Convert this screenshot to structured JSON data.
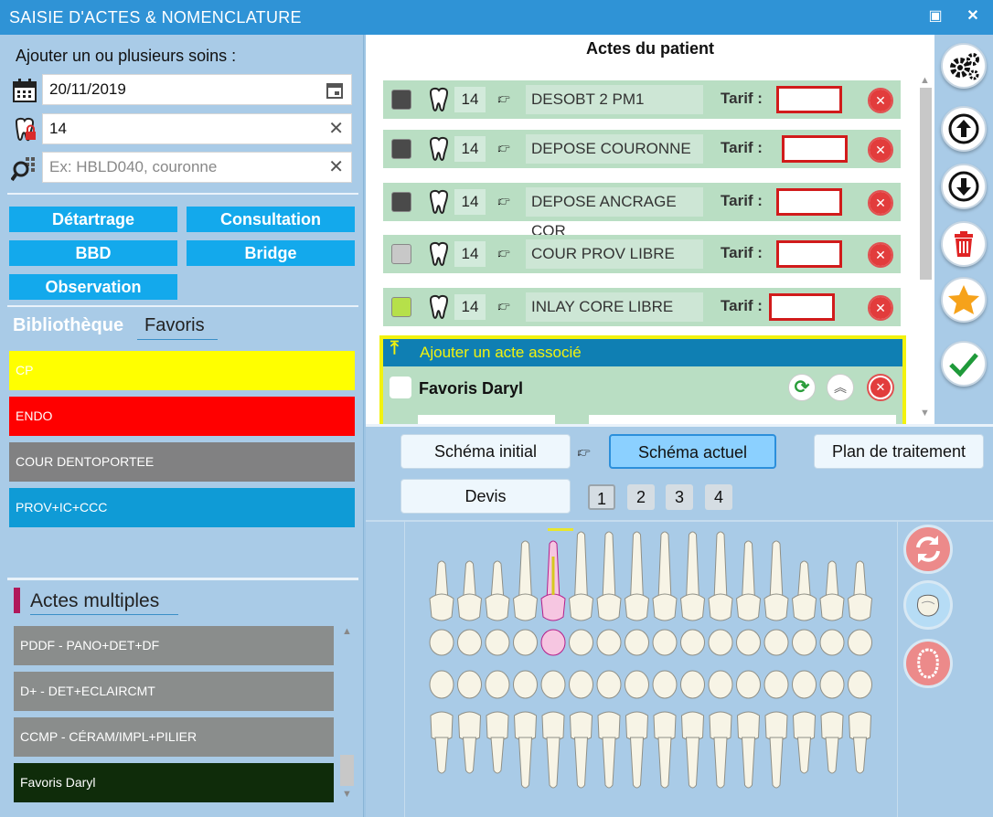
{
  "window": {
    "title": "SAISIE D'ACTES & NOMENCLATURE",
    "restore_icon": "▣",
    "close_icon": "✕"
  },
  "left": {
    "heading": "Ajouter un ou plusieurs soins :",
    "date_value": "20/11/2019",
    "tooth_value": "14",
    "search_placeholder": "Ex: HBLD040, couronne",
    "categories": [
      "Détartrage",
      "Consultation",
      "BBD",
      "Bridge",
      "Observation"
    ],
    "tabs": {
      "library": "Bibliothèque",
      "favorites": "Favoris"
    },
    "favorites": [
      {
        "label": "CP",
        "color": "#ffff00"
      },
      {
        "label": "ENDO",
        "color": "#ff0000"
      },
      {
        "label": "COUR DENTOPORTEE",
        "color": "#818182"
      },
      {
        "label": "PROV+IC+CCC",
        "color": "#0f9bd6"
      }
    ],
    "multi_heading": "Actes multiples",
    "multi_items": [
      {
        "label": "PDDF - PANO+DET+DF",
        "color": "#8a8d8c"
      },
      {
        "label": "D+ - DET+ECLAIRCMT",
        "color": "#8a8d8c"
      },
      {
        "label": "CCMP - CÉRAM/IMPL+PILIER",
        "color": "#8a8d8c"
      },
      {
        "label": "Favoris Daryl",
        "color": "#0f2c0a"
      }
    ]
  },
  "acts": {
    "heading": "Actes du patient",
    "tarif_label": "Tarif :",
    "rows": [
      {
        "tooth": "14",
        "label": "DESOBT 2 PM1",
        "status_color": "#4a4a4a"
      },
      {
        "tooth": "14",
        "label": "DEPOSE COURONNE",
        "status_color": "#4a4a4a"
      },
      {
        "tooth": "14",
        "label": "DEPOSE ANCRAGE COR",
        "status_color": "#4a4a4a"
      },
      {
        "tooth": "14",
        "label": "COUR PROV LIBRE",
        "status_color": "#c8c8c8"
      },
      {
        "tooth": "14",
        "label": "INLAY CORE LIBRE",
        "status_color": "#b6e04a"
      }
    ],
    "associate_label": "Ajouter un acte associé",
    "favoris_title": "Favoris Daryl"
  },
  "schema": {
    "initial": "Schéma initial",
    "actual": "Schéma actuel",
    "plan": "Plan de traitement",
    "quote": "Devis",
    "pages": [
      "1",
      "2",
      "3",
      "4"
    ]
  }
}
